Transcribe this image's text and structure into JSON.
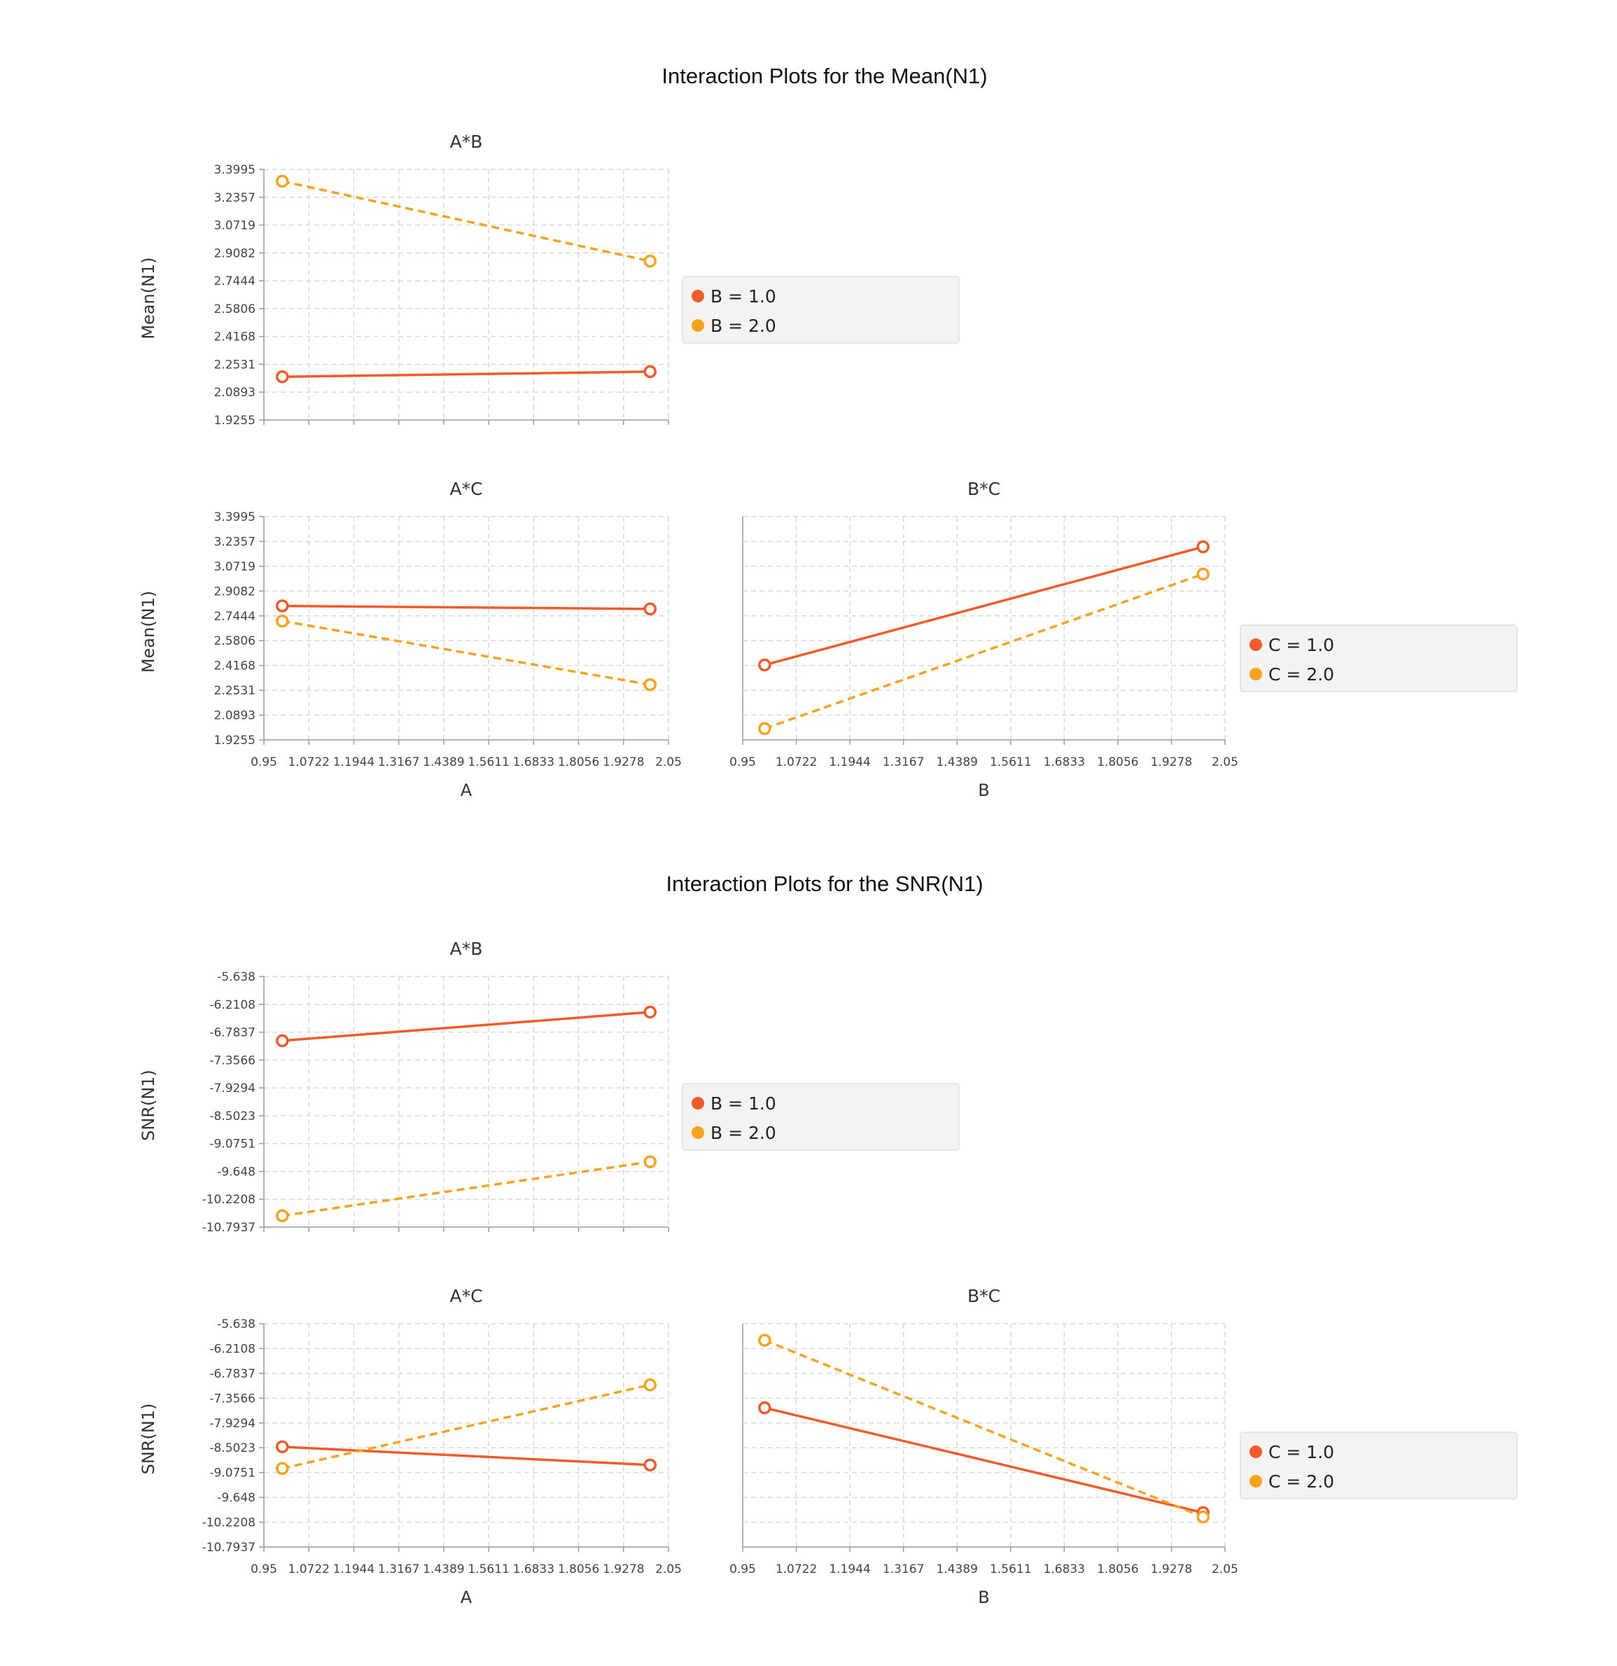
{
  "colors": {
    "level1": "#f15a29",
    "level2": "#f9a21b"
  },
  "chart_data": [
    {
      "type": "line",
      "group": "Interaction Plots for the Mean(N1)",
      "title": "A*B",
      "ylabel": "Mean(N1)",
      "xlabel": "",
      "show_x_ticks": false,
      "xlim": [
        0.95,
        2.05
      ],
      "xticks": [
        "0.95",
        "1.0722",
        "1.1944",
        "1.3167",
        "1.4389",
        "1.5611",
        "1.6833",
        "1.8056",
        "1.9278",
        "2.05"
      ],
      "ylim": [
        1.9255,
        3.3995
      ],
      "yticks": [
        "1.9255",
        "2.0893",
        "2.2531",
        "2.4168",
        "2.5806",
        "2.7444",
        "2.9082",
        "3.0719",
        "3.2357",
        "3.3995"
      ],
      "legend": [
        "B = 1.0",
        "B = 2.0"
      ],
      "series": [
        {
          "name": "B = 1.0",
          "x": [
            1,
            2
          ],
          "y": [
            2.18,
            2.21
          ]
        },
        {
          "name": "B = 2.0",
          "x": [
            1,
            2
          ],
          "y": [
            3.33,
            2.86
          ]
        }
      ]
    },
    {
      "type": "line",
      "group": "Interaction Plots for the Mean(N1)",
      "title": "A*C",
      "ylabel": "Mean(N1)",
      "xlabel": "A",
      "show_x_ticks": true,
      "xlim": [
        0.95,
        2.05
      ],
      "xticks": [
        "0.95",
        "1.0722",
        "1.1944",
        "1.3167",
        "1.4389",
        "1.5611",
        "1.6833",
        "1.8056",
        "1.9278",
        "2.05"
      ],
      "ylim": [
        1.9255,
        3.3995
      ],
      "yticks": [
        "1.9255",
        "2.0893",
        "2.2531",
        "2.4168",
        "2.5806",
        "2.7444",
        "2.9082",
        "3.0719",
        "3.2357",
        "3.3995"
      ],
      "legend": [],
      "series": [
        {
          "name": "C = 1.0",
          "x": [
            1,
            2
          ],
          "y": [
            2.81,
            2.79
          ]
        },
        {
          "name": "C = 2.0",
          "x": [
            1,
            2
          ],
          "y": [
            2.71,
            2.29
          ]
        }
      ]
    },
    {
      "type": "line",
      "group": "Interaction Plots for the Mean(N1)",
      "title": "B*C",
      "ylabel": "",
      "xlabel": "B",
      "show_x_ticks": true,
      "xlim": [
        0.95,
        2.05
      ],
      "xticks": [
        "0.95",
        "1.0722",
        "1.1944",
        "1.3167",
        "1.4389",
        "1.5611",
        "1.6833",
        "1.8056",
        "1.9278",
        "2.05"
      ],
      "ylim": [
        1.9255,
        3.3995
      ],
      "yticks": [],
      "legend": [
        "C = 1.0",
        "C = 2.0"
      ],
      "series": [
        {
          "name": "C = 1.0",
          "x": [
            1,
            2
          ],
          "y": [
            2.42,
            3.2
          ]
        },
        {
          "name": "C = 2.0",
          "x": [
            1,
            2
          ],
          "y": [
            2.0,
            3.02
          ]
        }
      ]
    },
    {
      "type": "line",
      "group": "Interaction Plots for the SNR(N1)",
      "title": "A*B",
      "ylabel": "SNR(N1)",
      "xlabel": "",
      "show_x_ticks": false,
      "xlim": [
        0.95,
        2.05
      ],
      "xticks": [
        "0.95",
        "1.0722",
        "1.1944",
        "1.3167",
        "1.4389",
        "1.5611",
        "1.6833",
        "1.8056",
        "1.9278",
        "2.05"
      ],
      "ylim": [
        -10.7937,
        -5.638
      ],
      "yticks": [
        "-10.7937",
        "-10.2208",
        "-9.648",
        "-9.0751",
        "-8.5023",
        "-7.9294",
        "-7.3566",
        "-6.7837",
        "-6.2108",
        "-5.638"
      ],
      "legend": [
        "B = 1.0",
        "B = 2.0"
      ],
      "series": [
        {
          "name": "B = 1.0",
          "x": [
            1,
            2
          ],
          "y": [
            -6.96,
            -6.37
          ]
        },
        {
          "name": "B = 2.0",
          "x": [
            1,
            2
          ],
          "y": [
            -10.56,
            -9.45
          ]
        }
      ]
    },
    {
      "type": "line",
      "group": "Interaction Plots for the SNR(N1)",
      "title": "A*C",
      "ylabel": "SNR(N1)",
      "xlabel": "A",
      "show_x_ticks": true,
      "xlim": [
        0.95,
        2.05
      ],
      "xticks": [
        "0.95",
        "1.0722",
        "1.1944",
        "1.3167",
        "1.4389",
        "1.5611",
        "1.6833",
        "1.8056",
        "1.9278",
        "2.05"
      ],
      "ylim": [
        -10.7937,
        -5.638
      ],
      "yticks": [
        "-10.7937",
        "-10.2208",
        "-9.648",
        "-9.0751",
        "-8.5023",
        "-7.9294",
        "-7.3566",
        "-6.7837",
        "-6.2108",
        "-5.638"
      ],
      "legend": [],
      "series": [
        {
          "name": "C = 1.0",
          "x": [
            1,
            2
          ],
          "y": [
            -8.48,
            -8.9
          ]
        },
        {
          "name": "C = 2.0",
          "x": [
            1,
            2
          ],
          "y": [
            -8.98,
            -7.05
          ]
        }
      ]
    },
    {
      "type": "line",
      "group": "Interaction Plots for the SNR(N1)",
      "title": "B*C",
      "ylabel": "",
      "xlabel": "B",
      "show_x_ticks": true,
      "xlim": [
        0.95,
        2.05
      ],
      "xticks": [
        "0.95",
        "1.0722",
        "1.1944",
        "1.3167",
        "1.4389",
        "1.5611",
        "1.6833",
        "1.8056",
        "1.9278",
        "2.05"
      ],
      "ylim": [
        -10.7937,
        -5.638
      ],
      "yticks": [],
      "legend": [
        "C = 1.0",
        "C = 2.0"
      ],
      "series": [
        {
          "name": "C = 1.0",
          "x": [
            1,
            2
          ],
          "y": [
            -7.58,
            -10.0
          ]
        },
        {
          "name": "C = 2.0",
          "x": [
            1,
            2
          ],
          "y": [
            -6.02,
            -10.1
          ]
        }
      ]
    }
  ]
}
